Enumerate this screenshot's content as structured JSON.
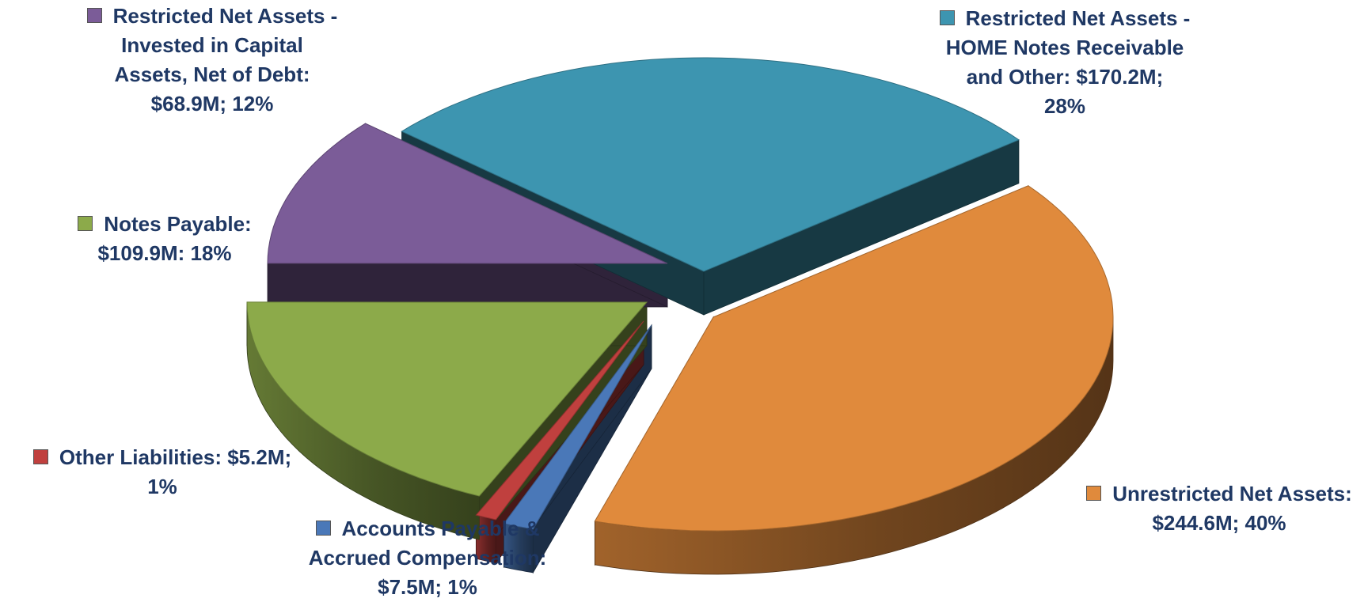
{
  "chart_data": {
    "type": "pie",
    "slices": [
      {
        "id": "unrestricted",
        "value": 244.6,
        "percent": 40,
        "color": "#e08a3c",
        "lines": [
          "Unrestricted Net Assets:",
          "$244.6M; 40%"
        ]
      },
      {
        "id": "accounts-payable",
        "value": 7.5,
        "percent": 1,
        "color": "#4a78b8",
        "lines": [
          "Accounts Payable &",
          "Accrued Compensation:",
          "$7.5M; 1%"
        ]
      },
      {
        "id": "other-liabilities",
        "value": 5.2,
        "percent": 1,
        "color": "#c0403e",
        "lines": [
          "Other Liabilities: $5.2M;",
          "1%"
        ]
      },
      {
        "id": "notes-payable",
        "value": 109.9,
        "percent": 18,
        "color": "#8caa4a",
        "lines": [
          "Notes Payable:",
          "$109.9M: 18%"
        ]
      },
      {
        "id": "restricted-capital",
        "value": 68.9,
        "percent": 12,
        "color": "#7b5c98",
        "lines": [
          "Restricted Net Assets -",
          "Invested in Capital",
          "Assets, Net of Debt:",
          "$68.9M; 12%"
        ]
      },
      {
        "id": "restricted-home",
        "value": 170.2,
        "percent": 28,
        "color": "#3d95b0",
        "lines": [
          "Restricted Net Assets -",
          "HOME Notes Receivable",
          "and Other:  $170.2M;",
          "28%"
        ]
      }
    ]
  }
}
